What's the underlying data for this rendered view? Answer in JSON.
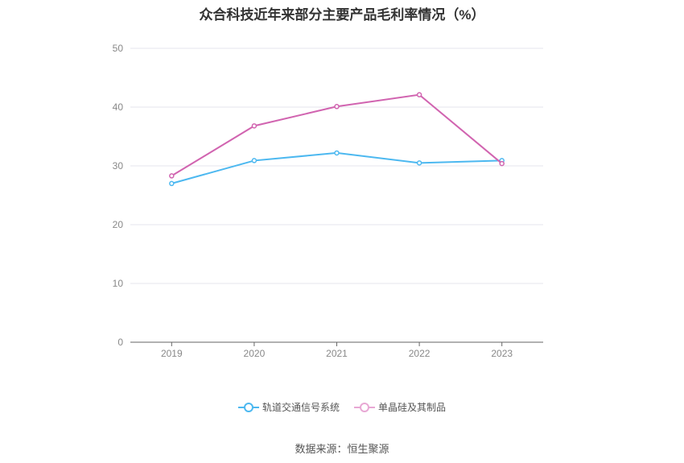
{
  "title": "众合科技近年来部分主要产品毛利率情况（%）",
  "source": "数据来源：恒生聚源",
  "chart_data": {
    "type": "line",
    "title": "众合科技近年来部分主要产品毛利率情况（%）",
    "categories": [
      "2019",
      "2020",
      "2021",
      "2022",
      "2023"
    ],
    "ylim": [
      0,
      50
    ],
    "yticks": [
      0,
      10,
      20,
      30,
      40,
      50
    ],
    "grid": true,
    "legend_position": "bottom",
    "series": [
      {
        "name": "轨道交通信号系统",
        "color": "#4cb8f0",
        "values": [
          27.0,
          30.9,
          32.2,
          30.5,
          30.9
        ]
      },
      {
        "name": "单晶硅及其制品",
        "color": "#d164b0",
        "values": [
          28.3,
          36.8,
          40.1,
          42.1,
          30.4
        ]
      }
    ]
  }
}
